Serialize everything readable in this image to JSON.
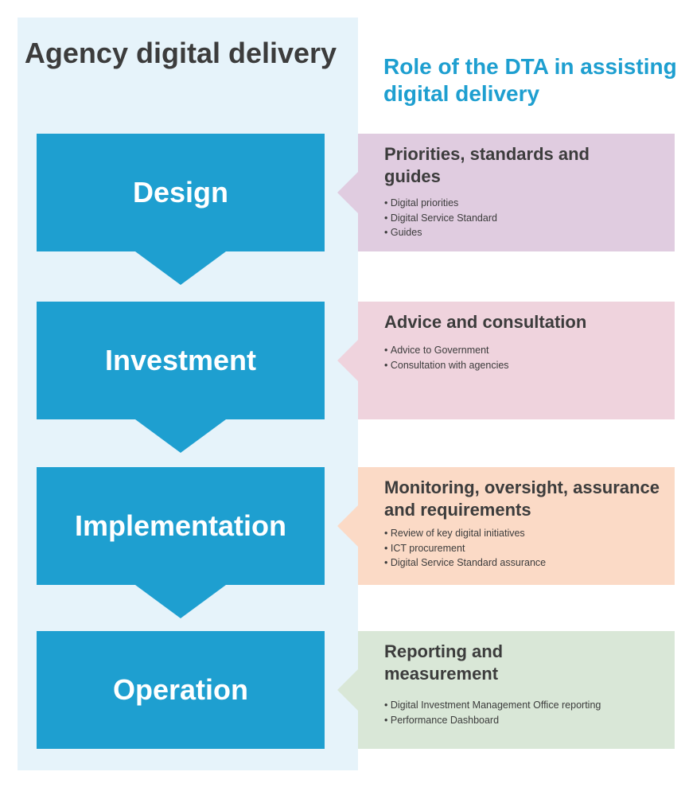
{
  "headings": {
    "left": "Agency digital delivery",
    "right": "Role of the DTA in assisting digital delivery"
  },
  "stages": [
    {
      "label": "Design"
    },
    {
      "label": "Investment"
    },
    {
      "label": "Implementation"
    },
    {
      "label": "Operation"
    }
  ],
  "roles": [
    {
      "title": "Priorities, standards and guides",
      "color": "#e0cce0",
      "items": [
        "Digital priorities",
        "Digital Service Standard",
        "Guides"
      ]
    },
    {
      "title": "Advice and consultation",
      "color": "#efd3dd",
      "items": [
        "Advice to Government",
        "Consultation with agencies"
      ]
    },
    {
      "title": "Monitoring, oversight, assurance and requirements",
      "color": "#fbdac6",
      "items": [
        "Review of key digital initiatives",
        "ICT procurement",
        "Digital Service Standard assurance"
      ]
    },
    {
      "title": "Reporting and measurement",
      "color": "#d9e7d7",
      "items": [
        "Digital Investment Management Office reporting",
        "Performance Dashboard"
      ]
    }
  ],
  "colors": {
    "stage_blue": "#1e9fd0",
    "panel_bg": "#e6f3fa",
    "heading_dark": "#3c3c3c",
    "heading_blue": "#1e9fd0"
  }
}
